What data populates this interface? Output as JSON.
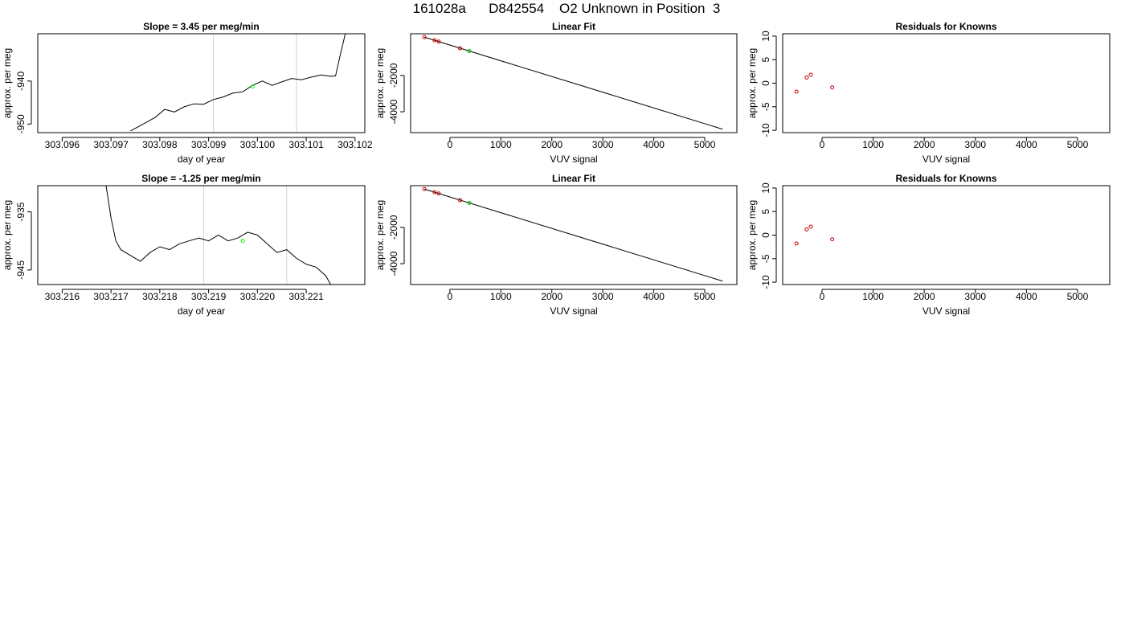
{
  "figure": {
    "title": "161028a      D842554    O2 Unknown in Position  3"
  },
  "chart_data": [
    {
      "type": "line",
      "title": "Slope =  3.45  per meg/min",
      "xlabel": "day of year",
      "ylabel": "approx. per meg",
      "xlim": [
        303.0955,
        303.1022
      ],
      "ylim": [
        -952,
        -929
      ],
      "xticks": [
        "303.096",
        "303.097",
        "303.098",
        "303.099",
        "303.100",
        "303.101",
        "303.102"
      ],
      "yticks": [
        "-940",
        "-950"
      ],
      "vlines": [
        303.0991,
        303.1008
      ],
      "vline_color": "#d3d3d3",
      "highlight_point": {
        "x": 303.0999,
        "y": -941.3,
        "color": "#00ff00"
      },
      "series": [
        {
          "color": "#000000",
          "x": [
            303.0974,
            303.0979,
            303.0981,
            303.0983,
            303.0985,
            303.0987,
            303.0989,
            303.0991,
            303.0993,
            303.0995,
            303.0997,
            303.0999,
            303.1001,
            303.1003,
            303.1005,
            303.1007,
            303.1009,
            303.1011,
            303.1013,
            303.1015,
            303.1016,
            303.1017,
            303.1018
          ],
          "y": [
            -951.6,
            -948.5,
            -946.6,
            -947.2,
            -946.0,
            -945.3,
            -945.4,
            -944.3,
            -943.7,
            -942.8,
            -942.5,
            -941.0,
            -940.0,
            -941.0,
            -940.2,
            -939.4,
            -939.7,
            -939.1,
            -938.6,
            -938.9,
            -938.8,
            -933.8,
            -929.0
          ]
        }
      ]
    },
    {
      "type": "scatter",
      "title": "Linear Fit",
      "xlabel": "VUV signal",
      "ylabel": "approx. per meg",
      "xlim": [
        -770,
        5630
      ],
      "ylim": [
        -5150,
        300
      ],
      "xticks": [
        "0",
        "1000",
        "2000",
        "3000",
        "4000",
        "5000"
      ],
      "yticks": [
        "-2000",
        "-4000"
      ],
      "fit_line": {
        "x": [
          -500,
          5350
        ],
        "y": [
          110,
          -4960
        ],
        "color": "#000000"
      },
      "series": [
        {
          "color": "#cc0000",
          "x": [
            -500,
            -300,
            -220,
            200
          ],
          "y": [
            110,
            -60,
            -130,
            -500
          ]
        },
        {
          "color": "#00cc00",
          "x": [
            380
          ],
          "y": [
            -650
          ]
        }
      ]
    },
    {
      "type": "scatter",
      "title": "Residuals for Knowns",
      "xlabel": "VUV signal",
      "ylabel": "approx. per meg",
      "xlim": [
        -770,
        5630
      ],
      "ylim": [
        -10.5,
        10.5
      ],
      "xticks": [
        "0",
        "1000",
        "2000",
        "3000",
        "4000",
        "5000"
      ],
      "yticks": [
        "10",
        "5",
        "0",
        "-5",
        "-10"
      ],
      "series": [
        {
          "color": "#cc0000",
          "x": [
            -500,
            -300,
            -220,
            200
          ],
          "y": [
            -1.8,
            1.2,
            1.8,
            -0.9
          ]
        }
      ]
    },
    {
      "type": "line",
      "title": "Slope =  -1.25  per meg/min",
      "xlabel": "day of year",
      "ylabel": "approx. per meg",
      "xlim": [
        303.2155,
        303.2222
      ],
      "ylim": [
        -947.5,
        -930.5
      ],
      "xticks": [
        "303.216",
        "303.217",
        "303.218",
        "303.219",
        "303.220",
        "303.221"
      ],
      "yticks": [
        "-935",
        "-945"
      ],
      "vlines": [
        303.2189,
        303.2206
      ],
      "vline_color": "#d3d3d3",
      "highlight_point": {
        "x": 303.2197,
        "y": -940.0,
        "color": "#00ff00"
      },
      "series": [
        {
          "color": "#000000",
          "x": [
            303.2169,
            303.217,
            303.2171,
            303.2172,
            303.2174,
            303.2176,
            303.2178,
            303.218,
            303.2182,
            303.2184,
            303.2186,
            303.2188,
            303.219,
            303.2192,
            303.2194,
            303.2196,
            303.2198,
            303.22,
            303.2202,
            303.2204,
            303.2206,
            303.2208,
            303.221,
            303.2212,
            303.2214,
            303.2215
          ],
          "y": [
            -930.5,
            -936.0,
            -940.0,
            -941.5,
            -942.5,
            -943.5,
            -942.0,
            -941.0,
            -941.5,
            -940.5,
            -940.0,
            -939.5,
            -940.0,
            -939.0,
            -940.0,
            -939.5,
            -938.5,
            -939.0,
            -940.5,
            -942.0,
            -941.5,
            -943.0,
            -944.0,
            -944.5,
            -946.0,
            -947.5
          ]
        }
      ]
    },
    {
      "type": "scatter",
      "title": "Linear Fit",
      "xlabel": "VUV signal",
      "ylabel": "approx. per meg",
      "xlim": [
        -770,
        5630
      ],
      "ylim": [
        -5150,
        300
      ],
      "xticks": [
        "0",
        "1000",
        "2000",
        "3000",
        "4000",
        "5000"
      ],
      "yticks": [
        "-2000",
        "-4000"
      ],
      "fit_line": {
        "x": [
          -500,
          5350
        ],
        "y": [
          110,
          -4960
        ],
        "color": "#000000"
      },
      "series": [
        {
          "color": "#cc0000",
          "x": [
            -500,
            -300,
            -220,
            200
          ],
          "y": [
            110,
            -60,
            -130,
            -500
          ]
        },
        {
          "color": "#00cc00",
          "x": [
            380
          ],
          "y": [
            -650
          ]
        }
      ]
    },
    {
      "type": "scatter",
      "title": "Residuals for Knowns",
      "xlabel": "VUV signal",
      "ylabel": "approx. per meg",
      "xlim": [
        -770,
        5630
      ],
      "ylim": [
        -10.5,
        10.5
      ],
      "xticks": [
        "0",
        "1000",
        "2000",
        "3000",
        "4000",
        "5000"
      ],
      "yticks": [
        "10",
        "5",
        "0",
        "-5",
        "-10"
      ],
      "series": [
        {
          "color": "#cc0000",
          "x": [
            -500,
            -300,
            -220,
            200
          ],
          "y": [
            -1.8,
            1.2,
            1.8,
            -0.9
          ]
        }
      ]
    }
  ]
}
